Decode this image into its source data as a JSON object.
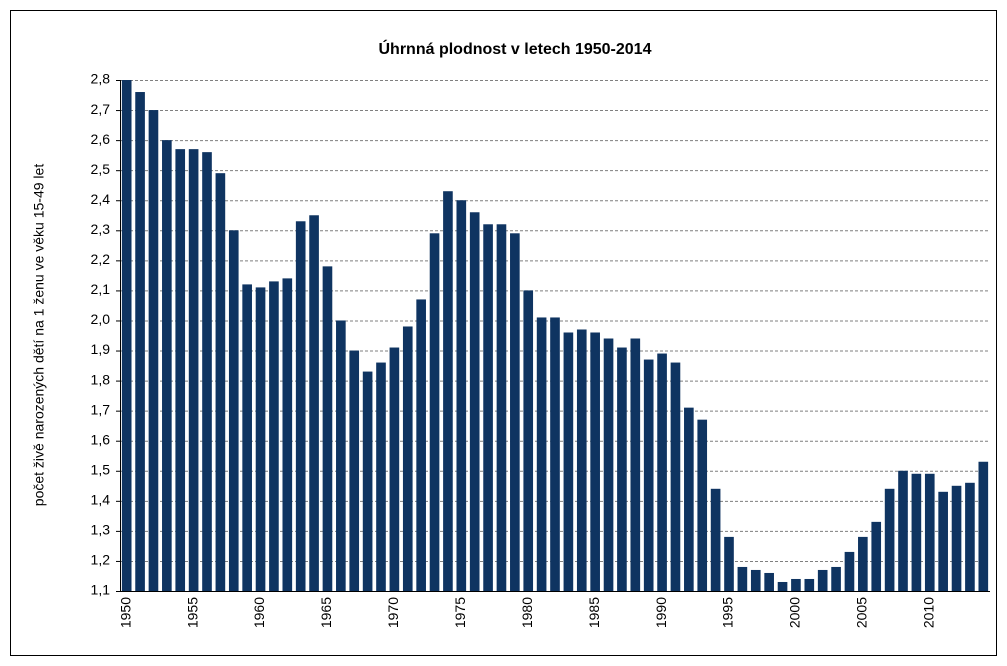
{
  "chart_data": {
    "type": "bar",
    "title": "Úhrnná plodnost  v letech 1950-2014",
    "y_label": "počet živě narozených dětí na 1 ženu ve věku 15-49 let",
    "categories": [
      "1950",
      null,
      null,
      null,
      null,
      "1955",
      null,
      null,
      null,
      null,
      "1960",
      null,
      null,
      null,
      null,
      "1965",
      null,
      null,
      null,
      null,
      "1970",
      null,
      null,
      null,
      null,
      "1975",
      null,
      null,
      null,
      null,
      "1980",
      null,
      null,
      null,
      null,
      "1985",
      null,
      null,
      null,
      null,
      "1990",
      null,
      null,
      null,
      null,
      "1995",
      null,
      null,
      null,
      null,
      "2000",
      null,
      null,
      null,
      null,
      "2005",
      null,
      null,
      null,
      null,
      "2010",
      null,
      null,
      null,
      null
    ],
    "values": [
      2.8,
      2.76,
      2.7,
      2.6,
      2.57,
      2.57,
      2.56,
      2.49,
      2.3,
      2.12,
      2.11,
      2.13,
      2.14,
      2.33,
      2.35,
      2.18,
      2.0,
      1.9,
      1.83,
      1.86,
      1.91,
      1.98,
      2.07,
      2.29,
      2.43,
      2.4,
      2.36,
      2.32,
      2.32,
      2.29,
      2.1,
      2.01,
      2.01,
      1.96,
      1.97,
      1.96,
      1.94,
      1.91,
      1.94,
      1.87,
      1.89,
      1.86,
      1.71,
      1.67,
      1.44,
      1.28,
      1.18,
      1.17,
      1.16,
      1.13,
      1.14,
      1.14,
      1.17,
      1.18,
      1.23,
      1.28,
      1.33,
      1.44,
      1.5,
      1.49,
      1.49,
      1.43,
      1.45,
      1.46,
      1.53
    ],
    "color": "#0f3461",
    "ylim": [
      1.1,
      2.8
    ],
    "yticks": [
      {
        "value": 1.1,
        "label": "1,1"
      },
      {
        "value": 1.2,
        "label": "1,2"
      },
      {
        "value": 1.3,
        "label": "1,3"
      },
      {
        "value": 1.4,
        "label": "1,4"
      },
      {
        "value": 1.5,
        "label": "1,5"
      },
      {
        "value": 1.6,
        "label": "1,6"
      },
      {
        "value": 1.7,
        "label": "1,7"
      },
      {
        "value": 1.8,
        "label": "1,8"
      },
      {
        "value": 1.9,
        "label": "1,9"
      },
      {
        "value": 2.0,
        "label": "2,0"
      },
      {
        "value": 2.1,
        "label": "2,1"
      },
      {
        "value": 2.2,
        "label": "2,2"
      },
      {
        "value": 2.3,
        "label": "2,3"
      },
      {
        "value": 2.4,
        "label": "2,4"
      },
      {
        "value": 2.5,
        "label": "2,5"
      },
      {
        "value": 2.6,
        "label": "2,6"
      },
      {
        "value": 2.7,
        "label": "2,7"
      },
      {
        "value": 2.8,
        "label": "2,8"
      }
    ],
    "grid": true
  }
}
